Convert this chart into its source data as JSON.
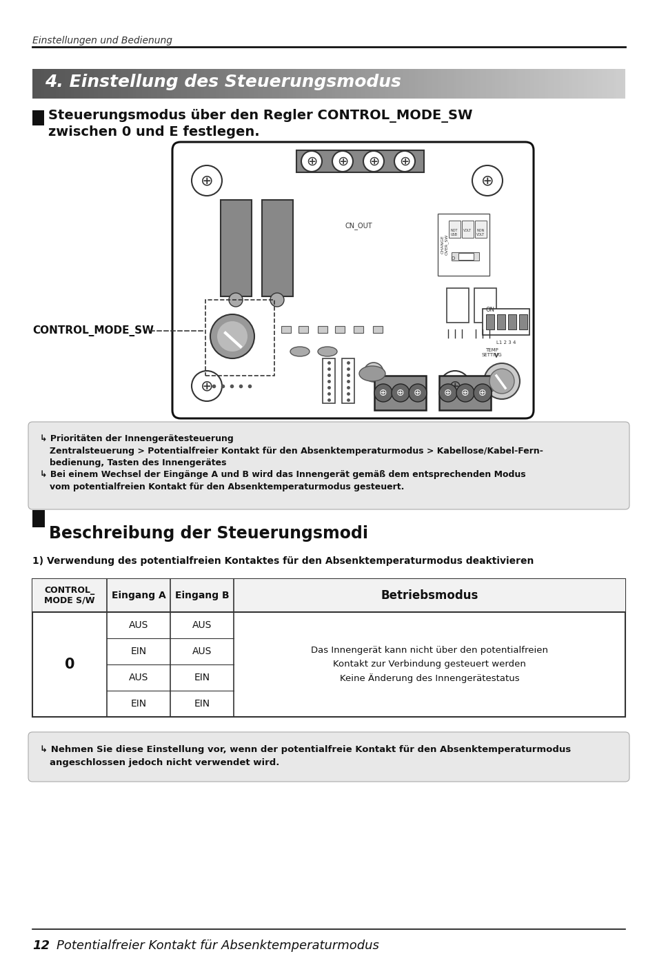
{
  "page_header": "Einstellungen und Bedienung",
  "section_title": "4. Einstellung des Steuerungsmodus",
  "section_subtitle_line1": "Steuerungsmodus über den Regler CONTROL_MODE_SW",
  "section_subtitle_line2": "zwischen 0 und E festlegen.",
  "control_label": "CONTROL_MODE_SW",
  "note_box1_lines": [
    "↳ Prioritäten der Innengerätesteuerung",
    "Zentralsteuerung > Potentialfreier Kontakt für den Absenktemperaturmodus > Kabellose/Kabel-Fern-",
    "bedienung, Tasten des Innengerätes",
    "↳ Bei einem Wechsel der Eingänge A und B wird das Innengerät gemäß dem entsprechenden Modus",
    "vom potentialfreien Kontakt für den Absenktemperaturmodus gesteuert."
  ],
  "section2_title": "Beschreibung der Steuerungsmodi",
  "table_subtitle": "1) Verwendung des potentialfreien Kontaktes für den Absenktemperaturmodus deaktivieren",
  "table_col1_header": "CONTROL_\nMODE S/W",
  "table_col2_header": "Eingang A",
  "table_col3_header": "Eingang B",
  "table_col4_header": "Betriebsmodus",
  "table_row_label": "0",
  "table_rows": [
    [
      "AUS",
      "AUS"
    ],
    [
      "EIN",
      "AUS"
    ],
    [
      "AUS",
      "EIN"
    ],
    [
      "EIN",
      "EIN"
    ]
  ],
  "table_betrieb_line1": "Das Innengerät kann nicht über den potentialfreien",
  "table_betrieb_line2": "Kontakt zur Verbindung gesteuert werden",
  "table_betrieb_line3": "Keine Änderung des Innengerätestatus",
  "note_box2_line1": "↳ Nehmen Sie diese Einstellung vor, wenn der potentialfreie Kontakt für den Absenktemperaturmodus",
  "note_box2_line2": "angeschlossen jedoch nicht verwendet wird.",
  "footer_num": "12",
  "footer_text": "Potentialfreier Kontakt für Absenktemperaturmodus",
  "bg_color": "#ffffff"
}
